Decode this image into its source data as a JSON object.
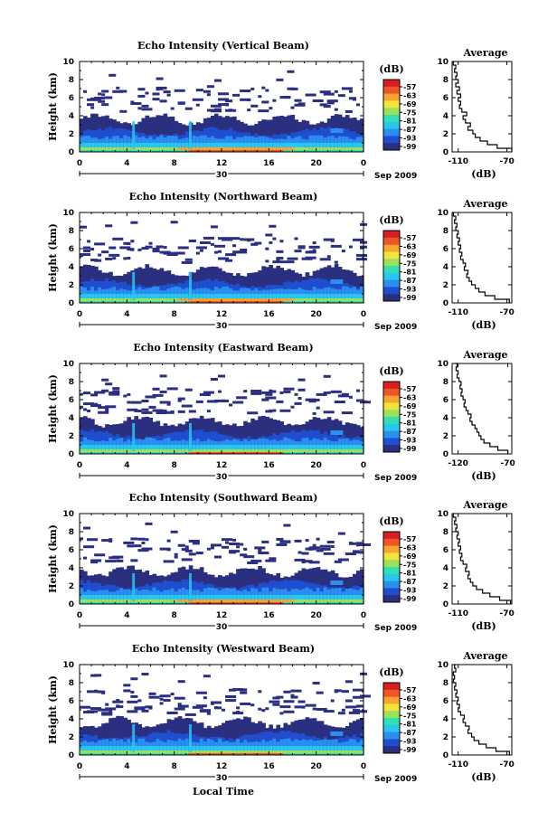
{
  "figure": {
    "average_title": "Average",
    "colorbar_unit": "(dB)",
    "avg_xlabel": "(dB)",
    "date_label": "Sep 2009",
    "day_label": "30",
    "bottom_xlabel": "Local Time"
  },
  "colors": {
    "scale": [
      "#2b2f80",
      "#1f4fd0",
      "#2a8ff0",
      "#29c7f0",
      "#35e0b0",
      "#9be25a",
      "#f2e43a",
      "#f7a530",
      "#f0552a",
      "#d81f1f"
    ]
  },
  "chart_data": [
    {
      "type": "heatmap",
      "title": "Echo Intensity (Vertical Beam)",
      "ylabel": "Height (km)",
      "x_ticks": [
        "0",
        "4",
        "8",
        "12",
        "16",
        "20",
        "0"
      ],
      "xlim": [
        0,
        24
      ],
      "y_ticks": [
        "0",
        "2",
        "4",
        "6",
        "8",
        "10"
      ],
      "ylim": [
        0,
        10
      ],
      "colorbar": {
        "unit": "(dB)",
        "ticks": [
          "-57",
          "-63",
          "-69",
          "-75",
          "-81",
          "-87",
          "-93",
          "-99"
        ]
      },
      "average": {
        "title": "Average",
        "xlabel": "(dB)",
        "x_ticks": [
          "-110",
          "-70"
        ],
        "xlim": [
          -115,
          -66
        ],
        "y_ticks": [
          "0",
          "2",
          "4",
          "6",
          "8",
          "10"
        ],
        "ylim": [
          0,
          10
        ],
        "height": [
          0,
          0.4,
          0.8,
          1.2,
          1.6,
          2.0,
          2.4,
          2.8,
          3.2,
          3.6,
          4.0,
          4.4,
          4.8,
          5.2,
          5.6,
          6.0,
          6.4,
          6.8,
          7.2,
          7.6,
          8.0,
          8.4,
          8.8,
          9.2,
          9.6,
          10.0
        ],
        "value_db": [
          -66,
          -78,
          -86,
          -92,
          -96,
          -98,
          -102,
          -100,
          -104,
          -106,
          -103,
          -107,
          -109,
          -108,
          -110,
          -108,
          -111,
          -109,
          -112,
          -110,
          -112,
          -111,
          -113,
          -112,
          -114,
          -113
        ]
      }
    },
    {
      "type": "heatmap",
      "title": "Echo Intensity (Northward Beam)",
      "ylabel": "Height (km)",
      "x_ticks": [
        "0",
        "4",
        "8",
        "12",
        "16",
        "20",
        "0"
      ],
      "xlim": [
        0,
        24
      ],
      "y_ticks": [
        "0",
        "2",
        "4",
        "6",
        "8",
        "10"
      ],
      "ylim": [
        0,
        10
      ],
      "colorbar": {
        "unit": "(dB)",
        "ticks": [
          "-57",
          "-63",
          "-69",
          "-75",
          "-81",
          "-87",
          "-93",
          "-99"
        ]
      },
      "average": {
        "title": "Average",
        "xlabel": "(dB)",
        "x_ticks": [
          "-110",
          "-70"
        ],
        "xlim": [
          -115,
          -66
        ],
        "y_ticks": [
          "0",
          "2",
          "4",
          "6",
          "8",
          "10"
        ],
        "ylim": [
          0,
          10
        ],
        "height": [
          0,
          0.4,
          0.8,
          1.2,
          1.6,
          2.0,
          2.4,
          2.8,
          3.2,
          3.6,
          4.0,
          4.4,
          4.8,
          5.2,
          5.6,
          6.0,
          6.4,
          6.8,
          7.2,
          7.6,
          8.0,
          8.4,
          8.8,
          9.2,
          9.6,
          10.0
        ],
        "value_db": [
          -68,
          -80,
          -88,
          -93,
          -96,
          -99,
          -101,
          -103,
          -102,
          -105,
          -104,
          -106,
          -108,
          -107,
          -109,
          -108,
          -110,
          -109,
          -111,
          -110,
          -112,
          -111,
          -113,
          -112,
          -114,
          -113
        ]
      }
    },
    {
      "type": "heatmap",
      "title": "Echo Intensity (Eastward Beam)",
      "ylabel": "Height (km)",
      "x_ticks": [
        "0",
        "4",
        "8",
        "12",
        "16",
        "20",
        "0"
      ],
      "xlim": [
        0,
        24
      ],
      "y_ticks": [
        "0",
        "2",
        "4",
        "6",
        "8",
        "10"
      ],
      "ylim": [
        0,
        10
      ],
      "colorbar": {
        "unit": "(dB)",
        "ticks": [
          "-57",
          "-63",
          "-69",
          "-75",
          "-81",
          "-87",
          "-93",
          "-99"
        ]
      },
      "average": {
        "title": "Average",
        "xlabel": "(dB)",
        "x_ticks": [
          "-120",
          "-70"
        ],
        "xlim": [
          -126,
          -66
        ],
        "y_ticks": [
          "0",
          "2",
          "4",
          "6",
          "8",
          "10"
        ],
        "ylim": [
          0,
          10
        ],
        "height": [
          0,
          0.4,
          0.8,
          1.2,
          1.6,
          2.0,
          2.4,
          2.8,
          3.2,
          3.6,
          4.0,
          4.4,
          4.8,
          5.2,
          5.6,
          6.0,
          6.4,
          6.8,
          7.2,
          7.6,
          8.0,
          8.4,
          8.8,
          9.2,
          9.6,
          10.0
        ],
        "value_db": [
          -70,
          -80,
          -88,
          -94,
          -97,
          -99,
          -101,
          -103,
          -106,
          -108,
          -107,
          -110,
          -112,
          -114,
          -113,
          -115,
          -117,
          -116,
          -118,
          -117,
          -119,
          -121,
          -120,
          -122,
          -121,
          -123
        ]
      }
    },
    {
      "type": "heatmap",
      "title": "Echo Intensity (Southward Beam)",
      "ylabel": "Height (km)",
      "x_ticks": [
        "0",
        "4",
        "8",
        "12",
        "16",
        "20",
        "0"
      ],
      "xlim": [
        0,
        24
      ],
      "y_ticks": [
        "0",
        "2",
        "4",
        "6",
        "8",
        "10"
      ],
      "ylim": [
        0,
        10
      ],
      "colorbar": {
        "unit": "(dB)",
        "ticks": [
          "-57",
          "-63",
          "-69",
          "-75",
          "-81",
          "-87",
          "-93",
          "-99"
        ]
      },
      "average": {
        "title": "Average",
        "xlabel": "(dB)",
        "x_ticks": [
          "-110",
          "-70"
        ],
        "xlim": [
          -115,
          -66
        ],
        "y_ticks": [
          "0",
          "2",
          "4",
          "6",
          "8",
          "10"
        ],
        "ylim": [
          0,
          10
        ],
        "height": [
          0,
          0.4,
          0.8,
          1.2,
          1.6,
          2.0,
          2.4,
          2.8,
          3.2,
          3.6,
          4.0,
          4.4,
          4.8,
          5.2,
          5.6,
          6.0,
          6.4,
          6.8,
          7.2,
          7.6,
          8.0,
          8.4,
          8.8,
          9.2,
          9.6,
          10.0
        ],
        "value_db": [
          -67,
          -76,
          -84,
          -90,
          -95,
          -98,
          -100,
          -102,
          -101,
          -104,
          -103,
          -106,
          -108,
          -107,
          -109,
          -108,
          -110,
          -109,
          -111,
          -110,
          -112,
          -111,
          -113,
          -112,
          -114,
          -113
        ]
      }
    },
    {
      "type": "heatmap",
      "title": "Echo Intensity (Westward Beam)",
      "ylabel": "Height (km)",
      "x_ticks": [
        "0",
        "4",
        "8",
        "12",
        "16",
        "20",
        "0"
      ],
      "xlim": [
        0,
        24
      ],
      "y_ticks": [
        "0",
        "2",
        "4",
        "6",
        "8",
        "10"
      ],
      "ylim": [
        0,
        10
      ],
      "colorbar": {
        "unit": "(dB)",
        "ticks": [
          "-57",
          "-63",
          "-69",
          "-75",
          "-81",
          "-87",
          "-93",
          "-99"
        ]
      },
      "average": {
        "title": "Average",
        "xlabel": "(dB)",
        "x_ticks": [
          "-110",
          "-70"
        ],
        "xlim": [
          -115,
          -66
        ],
        "y_ticks": [
          "0",
          "2",
          "4",
          "6",
          "8",
          "10"
        ],
        "ylim": [
          0,
          10
        ],
        "height": [
          0,
          0.4,
          0.8,
          1.2,
          1.6,
          2.0,
          2.4,
          2.8,
          3.2,
          3.6,
          4.0,
          4.4,
          4.8,
          5.2,
          5.6,
          6.0,
          6.4,
          6.8,
          7.2,
          7.6,
          8.0,
          8.4,
          8.8,
          9.2,
          9.6,
          10.0
        ],
        "value_db": [
          -68,
          -79,
          -87,
          -93,
          -97,
          -99,
          -102,
          -101,
          -104,
          -106,
          -105,
          -108,
          -110,
          -109,
          -111,
          -110,
          -112,
          -111,
          -113,
          -112,
          -114,
          -113,
          -114,
          -112,
          -113,
          -112
        ]
      }
    }
  ]
}
